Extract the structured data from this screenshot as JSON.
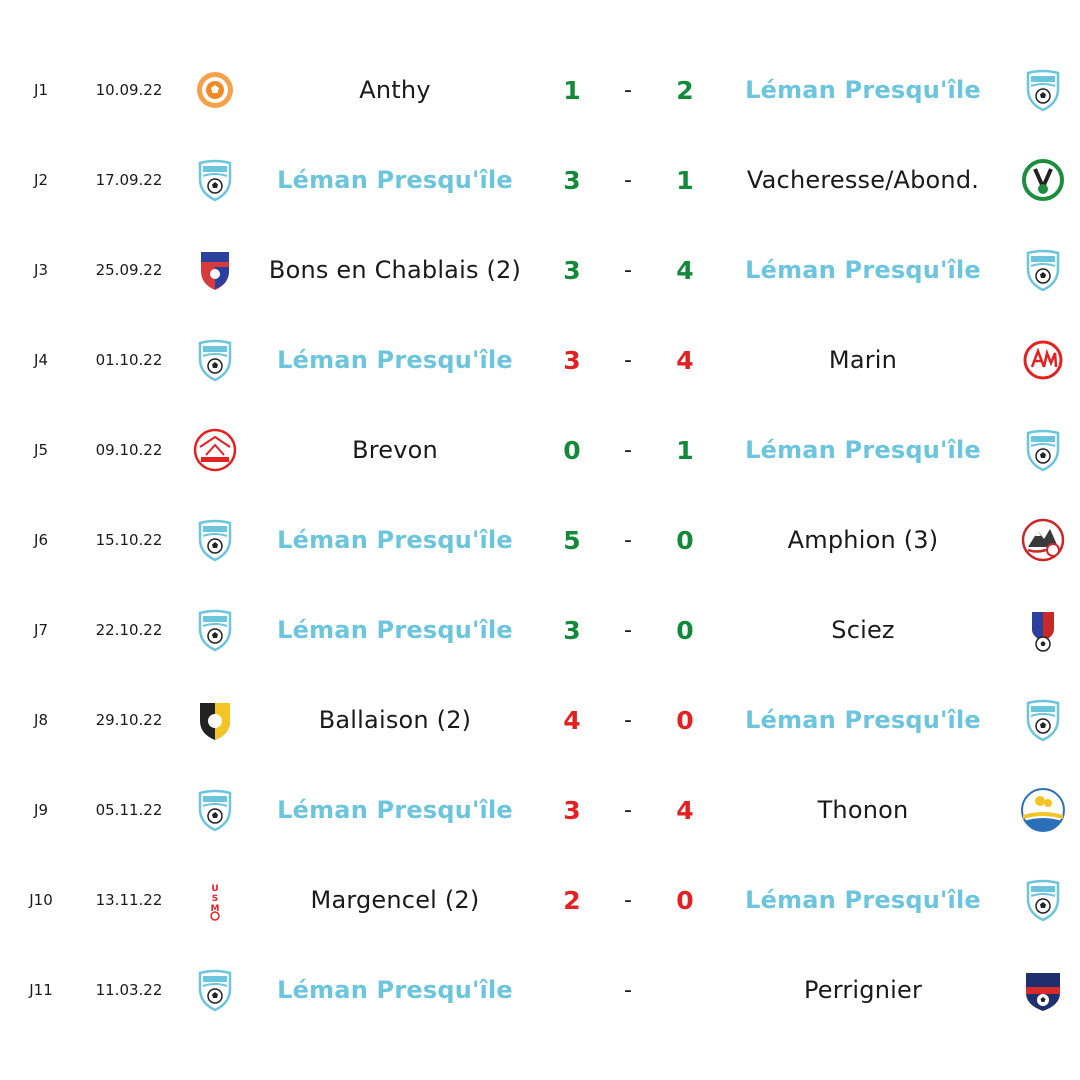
{
  "colors": {
    "club": "#6cc5dc",
    "win": "#138a3a",
    "loss": "#e22222",
    "text": "#1a1a1a"
  },
  "fixtures": [
    {
      "md": "J1",
      "date": "10.09.22",
      "home": "Anthy",
      "home_score": "1",
      "sep": "-",
      "away_score": "2",
      "away": "Léman Presqu'île",
      "result": "win",
      "home_is_club": false,
      "away_is_club": true,
      "home_logo": "anthy-logo",
      "away_logo": "fc-leman-logo"
    },
    {
      "md": "J2",
      "date": "17.09.22",
      "home": "Léman Presqu'île",
      "home_score": "3",
      "sep": "-",
      "away_score": "1",
      "away": "Vacheresse/Abond.",
      "result": "win",
      "home_is_club": true,
      "away_is_club": false,
      "home_logo": "fc-leman-logo",
      "away_logo": "csva-logo"
    },
    {
      "md": "J3",
      "date": "25.09.22",
      "home": "Bons en Chablais (2)",
      "home_score": "3",
      "sep": "-",
      "away_score": "4",
      "away": "Léman Presqu'île",
      "result": "win",
      "home_is_club": false,
      "away_is_club": true,
      "home_logo": "agb-logo",
      "away_logo": "fc-leman-logo"
    },
    {
      "md": "J4",
      "date": "01.10.22",
      "home": "Léman Presqu'île",
      "home_score": "3",
      "sep": "-",
      "away_score": "4",
      "away": "Marin",
      "result": "loss",
      "home_is_club": true,
      "away_is_club": false,
      "home_logo": "fc-leman-logo",
      "away_logo": "marin-logo"
    },
    {
      "md": "J5",
      "date": "09.10.22",
      "home": "Brevon",
      "home_score": "0",
      "sep": "-",
      "away_score": "1",
      "away": "Léman Presqu'île",
      "result": "win",
      "home_is_club": false,
      "away_is_club": true,
      "home_logo": "brevon-logo",
      "away_logo": "fc-leman-logo"
    },
    {
      "md": "J6",
      "date": "15.10.22",
      "home": "Léman Presqu'île",
      "home_score": "5",
      "sep": "-",
      "away_score": "0",
      "away": "Amphion (3)",
      "result": "win",
      "home_is_club": true,
      "away_is_club": false,
      "home_logo": "fc-leman-logo",
      "away_logo": "amphion-logo"
    },
    {
      "md": "J7",
      "date": "22.10.22",
      "home": "Léman Presqu'île",
      "home_score": "3",
      "sep": "-",
      "away_score": "0",
      "away": "Sciez",
      "result": "win",
      "home_is_club": true,
      "away_is_club": false,
      "home_logo": "fc-leman-logo",
      "away_logo": "sciez-logo"
    },
    {
      "md": "J8",
      "date": "29.10.22",
      "home": "Ballaison (2)",
      "home_score": "4",
      "sep": "-",
      "away_score": "0",
      "away": "Léman Presqu'île",
      "result": "loss",
      "home_is_club": false,
      "away_is_club": true,
      "home_logo": "ballaison-logo",
      "away_logo": "fc-leman-logo"
    },
    {
      "md": "J9",
      "date": "05.11.22",
      "home": "Léman Presqu'île",
      "home_score": "3",
      "sep": "-",
      "away_score": "4",
      "away": "Thonon",
      "result": "loss",
      "home_is_club": true,
      "away_is_club": false,
      "home_logo": "fc-leman-logo",
      "away_logo": "thonon-logo"
    },
    {
      "md": "J10",
      "date": "13.11.22",
      "home": "Margencel (2)",
      "home_score": "2",
      "sep": "-",
      "away_score": "0",
      "away": "Léman Presqu'île",
      "result": "loss",
      "home_is_club": false,
      "away_is_club": true,
      "home_logo": "usm-logo",
      "away_logo": "fc-leman-logo"
    },
    {
      "md": "J11",
      "date": "11.03.22",
      "home": "Léman Presqu'île",
      "home_score": "",
      "sep": "-",
      "away_score": "",
      "away": "Perrignier",
      "result": "none",
      "home_is_club": true,
      "away_is_club": false,
      "home_logo": "fc-leman-logo",
      "away_logo": "perrignier-logo"
    }
  ]
}
